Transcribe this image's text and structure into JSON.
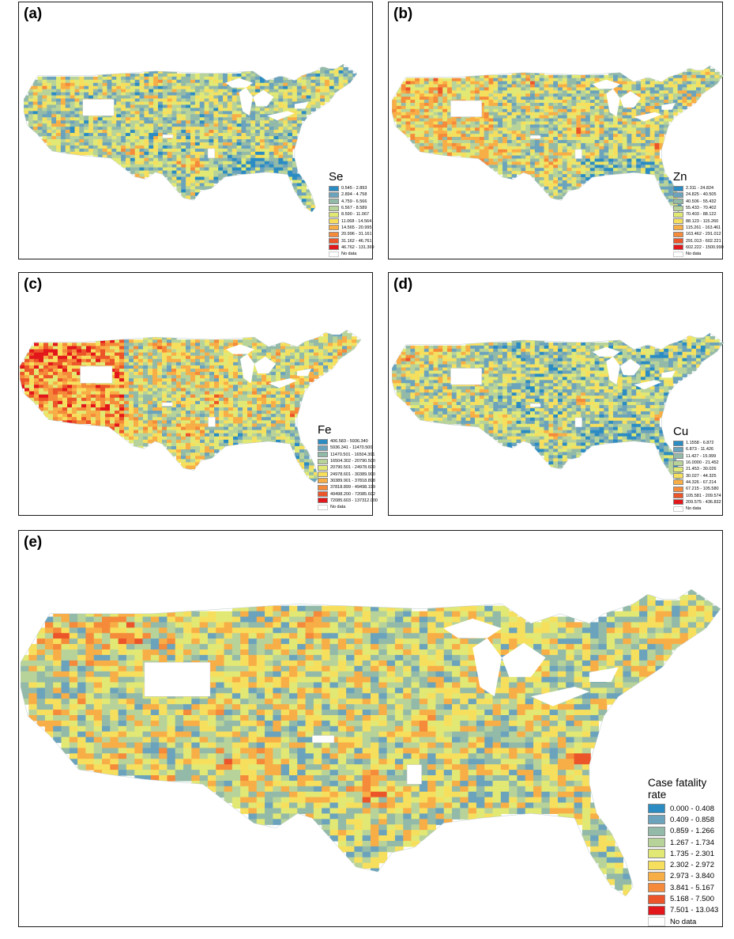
{
  "panels": [
    {
      "label": "(a)",
      "legend_title": "Se",
      "seed": 11,
      "bias": -0.6,
      "west": 0.1,
      "classes": [
        "0.545 - 2.893",
        "2.894 - 4.758",
        "4.759 - 6.566",
        "6.567 - 8.589",
        "8.590 - 11.067",
        "11.068 - 14.564",
        "14.565 - 20.995",
        "20.996 - 31.161",
        "31.162 - 46.761",
        "46.762 - 131.369"
      ],
      "no_data": "No data"
    },
    {
      "label": "(b)",
      "legend_title": "Zn",
      "seed": 23,
      "bias": -0.2,
      "west": 1.2,
      "classes": [
        "2.311 - 24.824",
        "24.825 - 40.505",
        "40.506 - 55.432",
        "55.433 - 70.402",
        "70.403 - 88.122",
        "88.123 - 115.260",
        "115.261 - 163.461",
        "163.462 - 291.012",
        "291.013 - 602.221",
        "602.222 - 1500.990"
      ],
      "no_data": "No data"
    },
    {
      "label": "(c)",
      "legend_title": "Fe",
      "seed": 37,
      "bias": 0.3,
      "west": 2.4,
      "classes": [
        "406.583 - 5936.340",
        "5936.341 - 11470.500",
        "11470.501 - 16504.301",
        "16504.302 - 20790.500",
        "20790.501 - 24978.600",
        "24978.601 - 30389.900",
        "30389.901 - 37818.898",
        "37818.899 - 49498.199",
        "49498.200 - 72085.602",
        "72085.603 - 137312.000"
      ],
      "no_data": "No data"
    },
    {
      "label": "(d)",
      "legend_title": "Cu",
      "seed": 51,
      "bias": -0.9,
      "west": 0.6,
      "classes": [
        "1.1558 - 6.872",
        "6.873 - 11.426",
        "11.427 - 15.999",
        "16.0000 - 21.452",
        "21.453 - 30.026",
        "30.027 - 44.325",
        "44.326 - 67.214",
        "67.215 - 105.580",
        "105.581 - 209.574",
        "209.575 - 436.832"
      ],
      "no_data": "No data"
    },
    {
      "label": "(e)",
      "legend_title": "Case fatality rate",
      "seed": 77,
      "bias": 0.0,
      "west": 0.2,
      "classes": [
        "0.000 - 0.408",
        "0.409 - 0.858",
        "0.859 - 1.266",
        "1.267 - 1.734",
        "1.735 - 2.301",
        "2.302 - 2.972",
        "2.973 - 3.840",
        "3.841 - 5.167",
        "5.168 - 7.500",
        "7.501 - 13.043"
      ],
      "no_data": "No data"
    }
  ],
  "palette": [
    "#2b8cc4",
    "#6ba3bd",
    "#93baa8",
    "#b8d39a",
    "#e2e874",
    "#f7df5e",
    "#f8ae46",
    "#f48a3a",
    "#ec5429",
    "#e3171b"
  ],
  "no_data_color": "#ffffff"
}
